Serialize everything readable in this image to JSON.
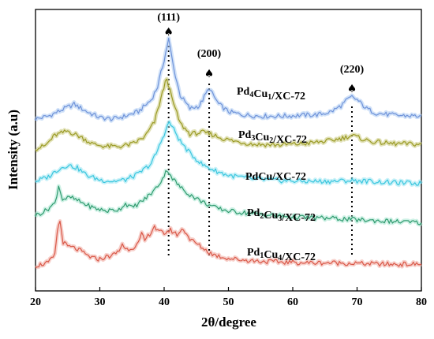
{
  "chart_data": {
    "type": "line",
    "xlabel": "2θ/degree",
    "ylabel": "Intensity (a.u)",
    "xlim": [
      20,
      80
    ],
    "xticks": [
      "20",
      "30",
      "40",
      "50",
      "60",
      "70",
      "80"
    ],
    "y_ticks_shown": false,
    "grid": false,
    "legend": "inline labels to the right of each curve",
    "offset_units": "arbitrary (stacked traces)",
    "peak_marker_symbol": "♠",
    "peaks": [
      {
        "label": "(111)",
        "x": 40.7
      },
      {
        "label": "(200)",
        "x": 47.0
      },
      {
        "label": "(220)",
        "x": 69.2
      }
    ],
    "series": [
      {
        "name": "Pd4Cu1/XC-72",
        "label_parts": [
          [
            "Pd",
            0
          ],
          [
            "4",
            1
          ],
          [
            "Cu",
            0
          ],
          [
            "1",
            1
          ],
          [
            "/XC-72",
            0
          ]
        ],
        "color": "#6f93d9",
        "halo": "#aac8f2",
        "x": [
          20,
          22,
          24,
          26,
          28,
          30,
          32,
          34,
          36,
          38,
          39,
          40,
          40.7,
          41.5,
          42.5,
          44,
          45.5,
          46.5,
          47,
          47.5,
          48.5,
          50,
          52,
          55,
          58,
          61,
          64,
          66,
          67.5,
          68.5,
          69.2,
          70,
          71.5,
          73,
          76,
          80
        ],
        "y": [
          3.6,
          3.8,
          4.2,
          4.6,
          4.1,
          3.7,
          3.6,
          3.8,
          4.1,
          4.9,
          5.8,
          7.6,
          9.0,
          7.0,
          5.2,
          4.3,
          4.5,
          5.3,
          5.7,
          5.3,
          4.6,
          4.1,
          3.9,
          3.8,
          3.8,
          3.85,
          3.9,
          4.1,
          4.5,
          4.9,
          5.1,
          4.9,
          4.3,
          4.0,
          3.85,
          3.8
        ]
      },
      {
        "name": "Pd3Cu2/XC-72",
        "label_parts": [
          [
            "Pd",
            0
          ],
          [
            "3",
            1
          ],
          [
            "Cu",
            0
          ],
          [
            "2",
            1
          ],
          [
            "/XC-72",
            0
          ]
        ],
        "color": "#9a9a24",
        "halo": "#c8c87a",
        "x": [
          20,
          21.5,
          23,
          25,
          27,
          29,
          31,
          33,
          35,
          37,
          38.5,
          39.5,
          40.4,
          41.2,
          42.5,
          44,
          46,
          47.5,
          49,
          51,
          54,
          58,
          62,
          66,
          68,
          69.2,
          70.5,
          72,
          75,
          80
        ],
        "y": [
          1.6,
          1.8,
          2.5,
          2.8,
          2.4,
          1.9,
          1.75,
          1.75,
          1.9,
          2.4,
          3.4,
          5.0,
          6.4,
          5.0,
          3.3,
          2.6,
          2.7,
          2.55,
          2.3,
          2.1,
          1.9,
          1.85,
          1.95,
          2.15,
          2.35,
          2.5,
          2.3,
          2.1,
          1.95,
          1.9
        ]
      },
      {
        "name": "PdCu/XC-72",
        "label_parts": [
          [
            "PdCu/XC-72",
            0
          ]
        ],
        "color": "#3ac6de",
        "halo": "#9be6f2",
        "x": [
          20,
          22,
          23.5,
          25,
          26.5,
          28,
          30,
          32,
          34,
          36,
          38,
          39,
          40,
          40.8,
          41.5,
          42.5,
          44,
          46,
          48,
          50,
          54,
          58,
          62,
          66,
          69,
          72,
          76,
          80
        ],
        "y": [
          -0.6,
          -0.3,
          0.2,
          0.5,
          0.3,
          -0.2,
          -0.5,
          -0.6,
          -0.5,
          -0.1,
          0.6,
          1.5,
          2.6,
          3.4,
          2.9,
          2.1,
          1.3,
          0.5,
          0.1,
          -0.2,
          -0.45,
          -0.55,
          -0.6,
          -0.6,
          -0.55,
          -0.6,
          -0.7,
          -0.75
        ]
      },
      {
        "name": "Pd2Cu3/XC-72",
        "label_parts": [
          [
            "Pd",
            0
          ],
          [
            "2",
            1
          ],
          [
            "Cu",
            0
          ],
          [
            "3",
            1
          ],
          [
            "/XC-72",
            0
          ]
        ],
        "color": "#2f9a6e",
        "halo": "#a6e6d0",
        "x": [
          20,
          21.5,
          23,
          23.6,
          24.2,
          25.5,
          27,
          29,
          31,
          33,
          34,
          35,
          37,
          38.5,
          39.5,
          40.5,
          41.3,
          42.5,
          44,
          46,
          48,
          50,
          54,
          58,
          62,
          66,
          70,
          75,
          80
        ],
        "y": [
          -2.9,
          -2.6,
          -2.1,
          -0.9,
          -1.8,
          -1.7,
          -2.0,
          -2.4,
          -2.6,
          -2.5,
          -2.1,
          -2.4,
          -1.8,
          -1.2,
          -0.6,
          0.2,
          -0.4,
          -1.0,
          -1.5,
          -2.0,
          -2.4,
          -2.6,
          -2.8,
          -2.95,
          -3.05,
          -3.1,
          -3.2,
          -3.3,
          -3.4
        ]
      },
      {
        "name": "Pd1Cu4/XC-72",
        "label_parts": [
          [
            "Pd",
            0
          ],
          [
            "1",
            1
          ],
          [
            "Cu",
            0
          ],
          [
            "4",
            1
          ],
          [
            "/XC-72",
            0
          ]
        ],
        "color": "#d95848",
        "halo": "#f0aaa0",
        "x": [
          20,
          22,
          23,
          23.4,
          23.8,
          24.3,
          25,
          26,
          27,
          28,
          29,
          30,
          31,
          32,
          33,
          33.5,
          34,
          35,
          36,
          36.5,
          37,
          38,
          38.5,
          39,
          40,
          41,
          42,
          43,
          44,
          45,
          46,
          47,
          48,
          50,
          52,
          55,
          58,
          62,
          66,
          70,
          75,
          80
        ],
        "y": [
          -6.3,
          -6.1,
          -5.6,
          -3.9,
          -3.3,
          -4.7,
          -5.0,
          -5.1,
          -5.3,
          -5.6,
          -5.8,
          -5.85,
          -5.7,
          -5.6,
          -5.3,
          -4.8,
          -5.2,
          -5.1,
          -4.8,
          -4.2,
          -4.6,
          -4.0,
          -3.6,
          -4.0,
          -4.1,
          -3.9,
          -4.2,
          -3.8,
          -4.5,
          -4.8,
          -5.1,
          -5.4,
          -5.6,
          -5.8,
          -5.9,
          -6.0,
          -6.05,
          -6.1,
          -6.1,
          -6.15,
          -6.2,
          -6.2
        ]
      }
    ]
  }
}
